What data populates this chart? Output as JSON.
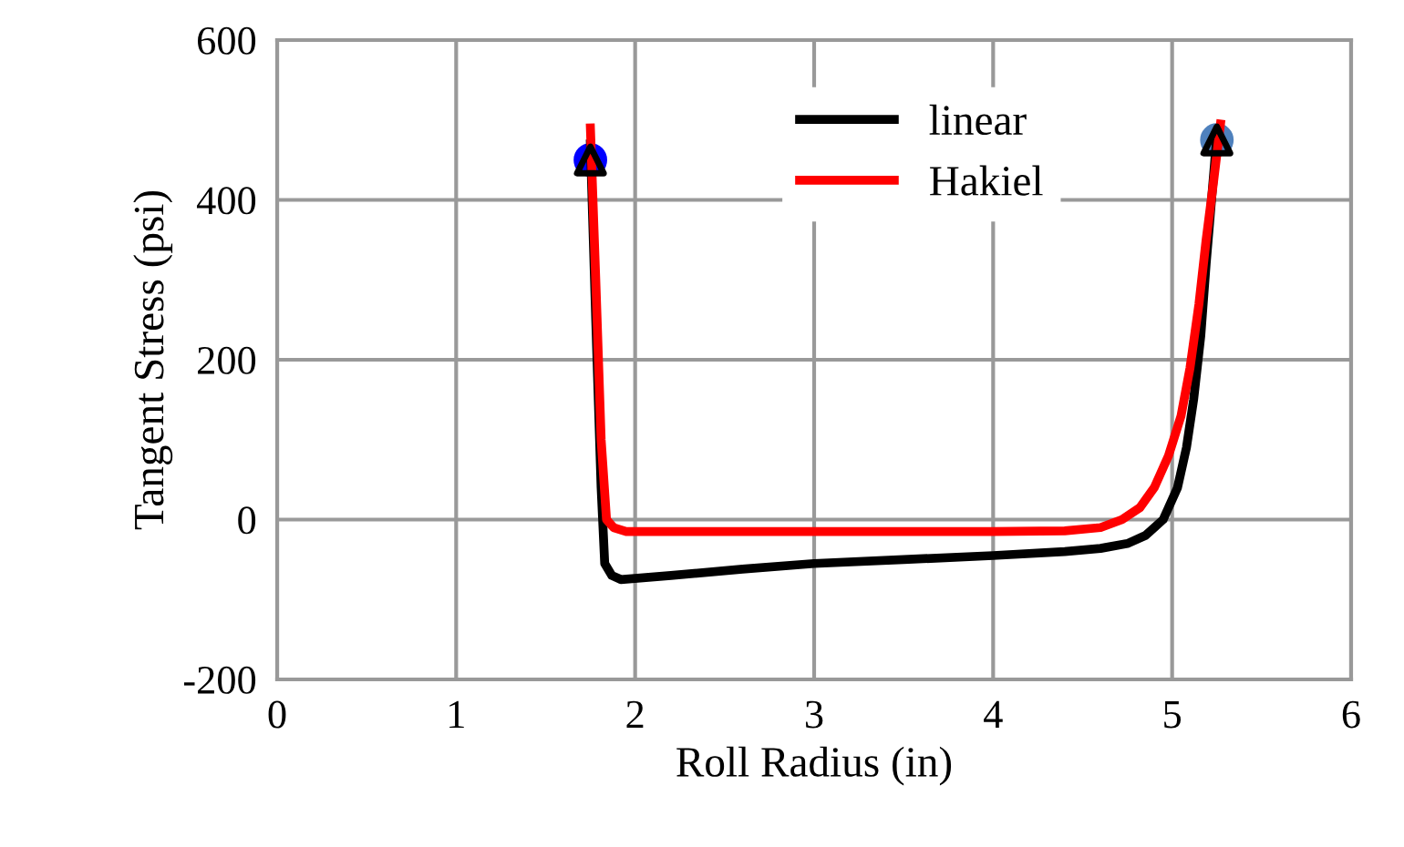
{
  "chart_data": {
    "type": "line",
    "xlabel": "Roll Radius (in)",
    "ylabel": "Tangent Stress (psi)",
    "xlim": [
      0,
      6
    ],
    "ylim": [
      -200,
      600
    ],
    "xticks": [
      0,
      1,
      2,
      3,
      4,
      5,
      6
    ],
    "yticks": [
      -200,
      0,
      200,
      400,
      600
    ],
    "grid": true,
    "legend": "top",
    "line_style": "solid",
    "series": [
      {
        "name": "linear",
        "color": "#000000",
        "x": [
          1.75,
          1.78,
          1.81,
          1.83,
          1.87,
          1.92,
          2.2,
          2.6,
          3.0,
          3.5,
          4.0,
          4.4,
          4.6,
          4.75,
          4.85,
          4.95,
          5.03,
          5.08,
          5.12,
          5.16,
          5.19,
          5.22,
          5.25
        ],
        "values": [
          470,
          250,
          40,
          -55,
          -70,
          -75,
          -70,
          -62,
          -55,
          -50,
          -45,
          -40,
          -36,
          -30,
          -20,
          0,
          40,
          90,
          150,
          230,
          320,
          400,
          480
        ]
      },
      {
        "name": "Hakiel",
        "color": "#ff0000",
        "x": [
          1.75,
          1.78,
          1.81,
          1.84,
          1.88,
          1.95,
          2.5,
          3.0,
          3.5,
          4.0,
          4.4,
          4.6,
          4.72,
          4.82,
          4.9,
          4.98,
          5.05,
          5.1,
          5.15,
          5.19,
          5.23,
          5.27
        ],
        "values": [
          490,
          300,
          100,
          0,
          -10,
          -15,
          -15,
          -15,
          -15,
          -15,
          -14,
          -10,
          0,
          15,
          40,
          80,
          130,
          190,
          270,
          350,
          420,
          495
        ]
      },
      {
        "type": "scatter",
        "marker": "circle",
        "x": [
          1.75,
          5.25
        ],
        "values": [
          450,
          475
        ],
        "colors": [
          "#0000ff",
          "#4f81bd"
        ]
      },
      {
        "type": "scatter",
        "marker": "triangle",
        "x": [
          1.75,
          5.25
        ],
        "values": [
          450,
          475
        ],
        "color": "#000000"
      }
    ]
  }
}
